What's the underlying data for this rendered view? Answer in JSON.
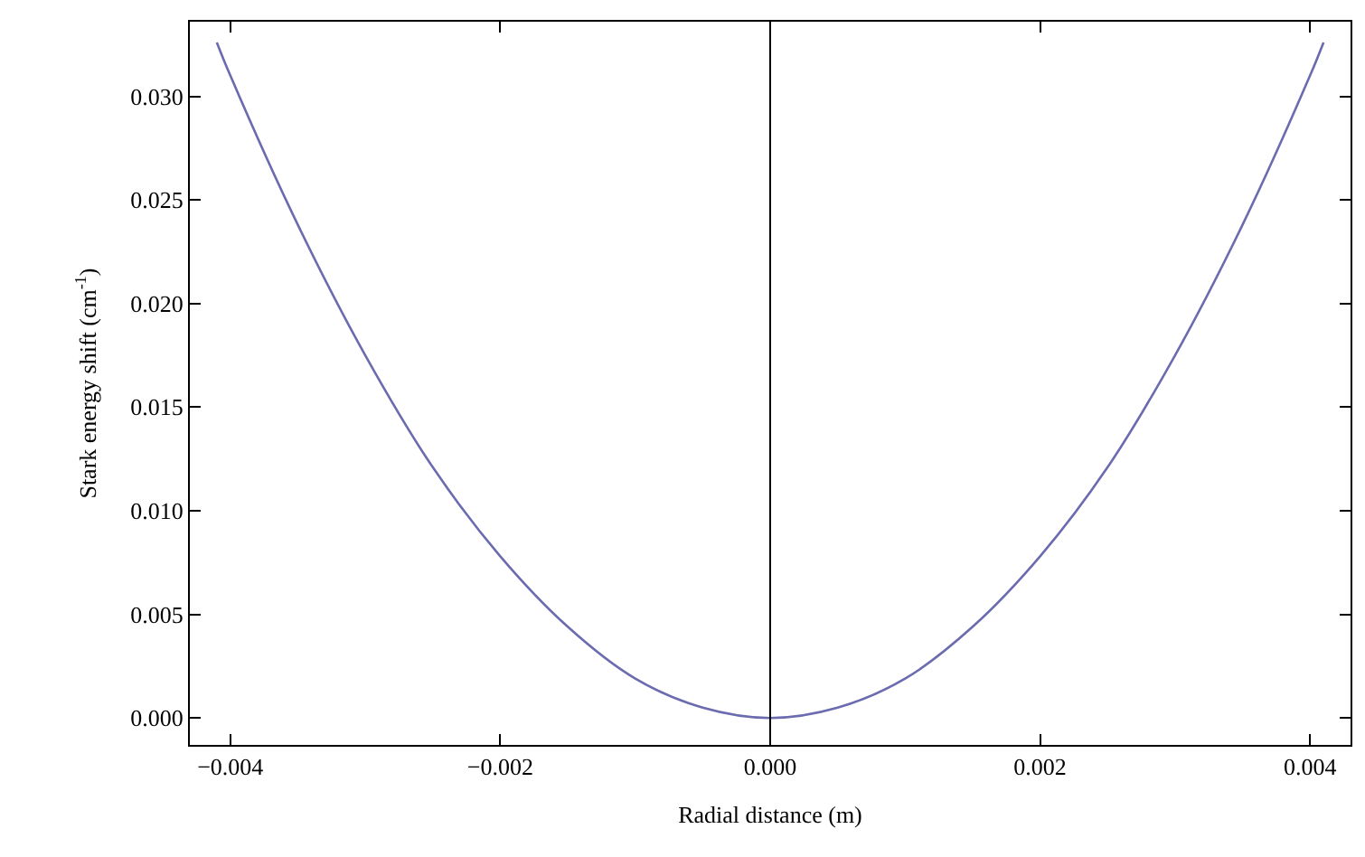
{
  "chart_data": {
    "type": "line",
    "xlabel": "Radial distance (m)",
    "ylabel": "Stark energy shift (cm$^{-1}$)",
    "x": [
      -0.0041,
      -0.004,
      -0.0035,
      -0.003,
      -0.0025,
      -0.002,
      -0.0015,
      -0.001,
      -0.0005,
      0,
      0.0005,
      0.001,
      0.0015,
      0.002,
      0.0025,
      0.003,
      0.0035,
      0.004,
      0.0041
    ],
    "series": [
      {
        "color": "#6b6bb0",
        "values": [
          0.0326,
          0.031,
          0.0238,
          0.0175,
          0.0121,
          0.0078,
          0.0044,
          0.0019,
          0.0005,
          0,
          0.0005,
          0.0019,
          0.0044,
          0.0078,
          0.0121,
          0.0175,
          0.0238,
          0.031,
          0.0326
        ]
      }
    ],
    "xlim": [
      -0.0043,
      0.0043
    ],
    "ylim": [
      -0.0013,
      0.0336
    ],
    "xticks": [
      {
        "value": -0.004,
        "label": "−0.004"
      },
      {
        "value": -0.002,
        "label": "−0.002"
      },
      {
        "value": 0,
        "label": "0.000"
      },
      {
        "value": 0.002,
        "label": "0.002"
      },
      {
        "value": 0.004,
        "label": "0.004"
      }
    ],
    "yticks": [
      {
        "value": 0,
        "label": "0.000"
      },
      {
        "value": 0.005,
        "label": "0.005"
      },
      {
        "value": 0.01,
        "label": "0.010"
      },
      {
        "value": 0.015,
        "label": "0.015"
      },
      {
        "value": 0.02,
        "label": "0.020"
      },
      {
        "value": 0.025,
        "label": "0.025"
      },
      {
        "value": 0.03,
        "label": "0.030"
      }
    ],
    "ref_lines": [
      {
        "axis": "x",
        "value": 0,
        "color": "#000000"
      }
    ],
    "legend": false,
    "marker": "none",
    "line_style": "solid"
  }
}
